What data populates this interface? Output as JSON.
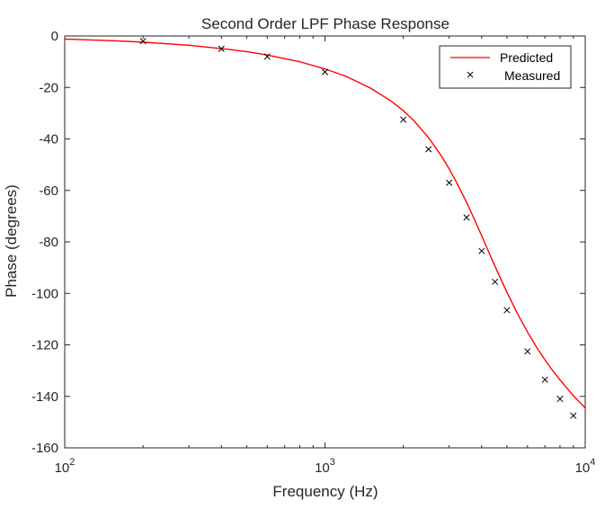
{
  "chart_data": {
    "type": "line",
    "title": "Second Order LPF Phase Response",
    "xlabel": "Frequency (Hz)",
    "ylabel": "Phase (degrees)",
    "xscale": "log",
    "xlim": [
      100,
      10000
    ],
    "ylim": [
      -160,
      0
    ],
    "grid": false,
    "legend_position": "top-right",
    "x_ticks": [
      {
        "base": "10",
        "exp": "2"
      },
      {
        "base": "10",
        "exp": "3"
      },
      {
        "base": "10",
        "exp": "4"
      }
    ],
    "y_ticks": [
      "0",
      "-20",
      "-40",
      "-60",
      "-80",
      "-100",
      "-120",
      "-140",
      "-160"
    ],
    "series": [
      {
        "name": "Predicted",
        "style": "line",
        "color": "#ff0000",
        "x": [
          100,
          150,
          200,
          300,
          400,
          500,
          600,
          800,
          1000,
          1200,
          1500,
          1800,
          2000,
          2200,
          2500,
          2800,
          3000,
          3200,
          3500,
          3800,
          4000,
          4300,
          4600,
          5000,
          5500,
          6000,
          6500,
          7000,
          7500,
          8000,
          8500,
          9000,
          9500,
          10000
        ],
        "y": [
          -1.2,
          -1.8,
          -2.4,
          -3.6,
          -4.9,
          -6.1,
          -7.4,
          -10.0,
          -12.8,
          -15.6,
          -20.3,
          -25.4,
          -29.0,
          -33.0,
          -39.5,
          -46.6,
          -51.6,
          -56.8,
          -64.6,
          -72.5,
          -77.6,
          -84.9,
          -91.6,
          -99.5,
          -108.0,
          -115.0,
          -120.9,
          -125.8,
          -130.0,
          -133.6,
          -136.8,
          -139.7,
          -142.2,
          -144.5
        ]
      },
      {
        "name": "Measured",
        "style": "marker-x",
        "color": "#000000",
        "x": [
          200,
          400,
          600,
          1000,
          2000,
          2500,
          3000,
          3500,
          4000,
          4500,
          5000,
          6000,
          7000,
          8000,
          9000
        ],
        "y": [
          -2,
          -5,
          -8,
          -14,
          -32.5,
          -44,
          -57,
          -70.5,
          -83.5,
          -95.5,
          -106.5,
          -122.5,
          -133.5,
          -141,
          -147.5
        ]
      }
    ]
  }
}
